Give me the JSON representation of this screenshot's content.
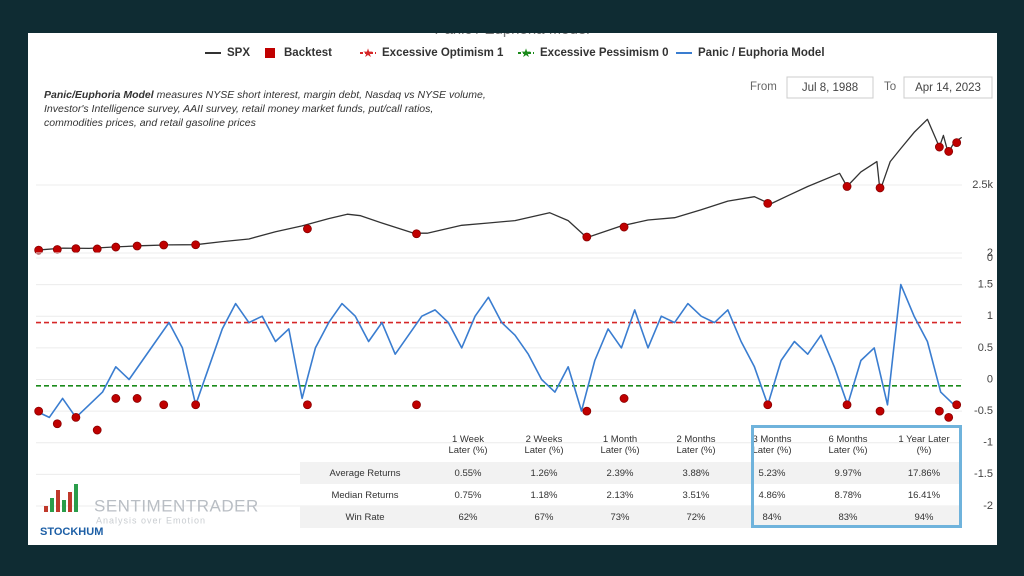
{
  "chart_data": [
    {
      "type": "line",
      "title": "Panic / Euphoria Model",
      "xlim": [
        1988.5,
        2023.3
      ],
      "ylim": [
        0,
        5000
      ],
      "yticks": [
        0,
        {
          "value": 2500,
          "label": "2.5k"
        }
      ],
      "series": [
        {
          "name": "SPX",
          "color": "#333333",
          "x": [
            1988.5,
            1989.5,
            1990.5,
            1991.5,
            1992.5,
            1993.5,
            1994.5,
            1995.5,
            1996.5,
            1997.5,
            1998.5,
            1999.5,
            2000.2,
            2000.7,
            2001.5,
            2002.7,
            2003.2,
            2004.5,
            2005.5,
            2006.5,
            2007.8,
            2008.5,
            2009.2,
            2010.5,
            2011.5,
            2012.5,
            2013.5,
            2014.5,
            2015.5,
            2016.1,
            2016.8,
            2017.5,
            2018.7,
            2018.98,
            2019.5,
            2020.1,
            2020.22,
            2020.6,
            2021.0,
            2021.5,
            2022.0,
            2022.45,
            2022.6,
            2022.78,
            2023.0,
            2023.29
          ],
          "values": [
            266,
            340,
            330,
            380,
            420,
            450,
            455,
            560,
            650,
            900,
            1100,
            1350,
            1500,
            1450,
            1200,
            850,
            850,
            1120,
            1200,
            1280,
            1550,
            1280,
            700,
            1100,
            1300,
            1380,
            1650,
            1950,
            2100,
            1850,
            2150,
            2450,
            2900,
            2450,
            2950,
            3300,
            2300,
            3300,
            3750,
            4300,
            4750,
            3800,
            4200,
            3600,
            3950,
            4130
          ]
        },
        {
          "name": "Backtest",
          "color": "#c00000",
          "x": [
            1988.6,
            1989.3,
            1990.0,
            1990.8,
            1991.5,
            1992.3,
            1993.3,
            1994.5,
            1998.7,
            2002.8,
            2009.2,
            2010.6,
            2016.0,
            2018.98,
            2020.22,
            2022.45,
            2022.8,
            2023.1
          ],
          "values": [
            270,
            290,
            320,
            310,
            375,
            410,
            445,
            455,
            1000,
            830,
            720,
            1060,
            1870,
            2450,
            2400,
            3800,
            3650,
            3950
          ]
        }
      ]
    },
    {
      "type": "line",
      "xlim": [
        1988.5,
        2023.3
      ],
      "ylim": [
        -2.25,
        2
      ],
      "yticks": [
        -2,
        -1.5,
        -1,
        -0.5,
        0,
        0.5,
        1,
        1.5,
        2
      ],
      "grid": true,
      "reference_lines": [
        {
          "name": "Excessive Optimism 1",
          "value": 0.9,
          "color": "#d62728"
        },
        {
          "name": "Excessive Pessimism 0",
          "value": -0.1,
          "color": "#1a8a1a"
        }
      ],
      "series": [
        {
          "name": "Panic / Euphoria Model",
          "color": "#3a7dd0",
          "x": [
            1988.5,
            1989,
            1989.5,
            1990,
            1990.5,
            1991,
            1991.5,
            1992,
            1992.5,
            1993,
            1993.5,
            1994,
            1994.5,
            1995,
            1995.5,
            1996,
            1996.5,
            1997,
            1997.5,
            1998,
            1998.5,
            1999,
            1999.5,
            2000,
            2000.5,
            2001,
            2001.5,
            2002,
            2002.5,
            2003,
            2003.5,
            2004,
            2004.5,
            2005,
            2005.5,
            2006,
            2006.5,
            2007,
            2007.5,
            2008,
            2008.5,
            2009,
            2009.5,
            2010,
            2010.5,
            2011,
            2011.5,
            2012,
            2012.5,
            2013,
            2013.5,
            2014,
            2014.5,
            2015,
            2015.5,
            2016,
            2016.5,
            2017,
            2017.5,
            2018,
            2018.5,
            2019,
            2019.5,
            2020,
            2020.5,
            2021,
            2021.5,
            2022,
            2022.5,
            2023
          ],
          "values": [
            -0.5,
            -0.6,
            -0.3,
            -0.6,
            -0.4,
            -0.2,
            0.2,
            0,
            0.3,
            0.6,
            0.9,
            0.5,
            -0.4,
            0.2,
            0.8,
            1.2,
            0.9,
            1,
            0.6,
            0.8,
            -0.3,
            0.5,
            0.9,
            1.2,
            1,
            0.6,
            0.9,
            0.4,
            0.7,
            1,
            1.1,
            0.9,
            0.5,
            1,
            1.3,
            0.9,
            0.7,
            0.4,
            0,
            -0.2,
            0.2,
            -0.5,
            0.3,
            0.8,
            0.5,
            1.1,
            0.5,
            1,
            0.9,
            1.2,
            1,
            0.9,
            1.1,
            0.6,
            0.2,
            -0.4,
            0.3,
            0.6,
            0.4,
            0.7,
            0.2,
            -0.4,
            0.3,
            0.5,
            -0.4,
            1.5,
            1,
            0.6,
            -0.2,
            -0.4
          ]
        },
        {
          "name": "Backtest",
          "color": "#c00000",
          "x": [
            1988.6,
            1989.3,
            1990.0,
            1990.8,
            1991.5,
            1992.3,
            1993.3,
            1994.5,
            1998.7,
            2002.8,
            2009.2,
            2010.6,
            2016.0,
            2018.98,
            2020.22,
            2022.45,
            2022.8,
            2023.1
          ],
          "values": [
            -0.5,
            -0.7,
            -0.6,
            -0.8,
            -0.3,
            -0.3,
            -0.4,
            -0.4,
            -0.4,
            -0.4,
            -0.5,
            -0.3,
            -0.4,
            -0.4,
            -0.5,
            -0.5,
            -0.6,
            -0.4
          ]
        }
      ]
    }
  ],
  "description": {
    "bold": "Panic/Euphoria Model",
    "lines": [
      " measures NYSE short interest, margin debt, Nasdaq vs NYSE volume,",
      "Investor's Intelligence survey, AAII survey, retail money market funds, put/call ratios,",
      "commodities prices, and retail gasoline prices"
    ]
  },
  "range": {
    "from_label": "From",
    "from": "Jul 8, 1988",
    "to_label": "To",
    "to": "Apr 14, 2023"
  },
  "table": {
    "header": [
      "1 Week Later (%)",
      "2 Weeks Later (%)",
      "1 Month Later (%)",
      "2 Months Later (%)",
      "3 Months Later (%)",
      "6 Months Later (%)",
      "1 Year Later (%)"
    ],
    "rows": [
      [
        "Average Returns",
        "0.55%",
        "1.26%",
        "2.39%",
        "3.88%",
        "5.23%",
        "9.97%",
        "17.86%"
      ],
      [
        "Median Returns",
        "0.75%",
        "1.18%",
        "2.13%",
        "3.51%",
        "4.86%",
        "8.78%",
        "16.41%"
      ],
      [
        "Win Rate",
        "62%",
        "67%",
        "73%",
        "72%",
        "84%",
        "83%",
        "94%"
      ]
    ]
  },
  "watermark": {
    "brand": "SENTIMENTRADER",
    "tagline": "Analysis over Emotion",
    "logo": "STOCKHUM"
  }
}
